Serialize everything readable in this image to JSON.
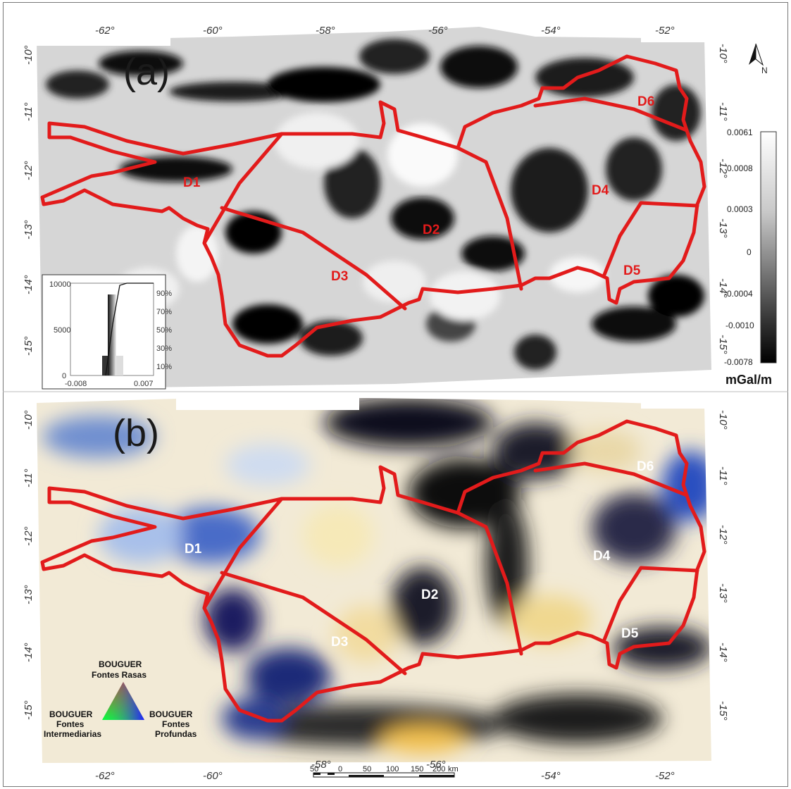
{
  "panels": {
    "a": {
      "label": "(a)"
    },
    "b": {
      "label": "(b)"
    }
  },
  "axes": {
    "top_lon_ticks": [
      "-62°",
      "-60°",
      "-58°",
      "-56°",
      "-54°",
      "-52°"
    ],
    "bottom_lon_ticks": [
      "-62°",
      "-60°",
      "-58°",
      "-56°",
      "-54°",
      "-52°"
    ],
    "panel_a_lat_ticks": [
      "-10°",
      "-11°",
      "-12°",
      "-13°",
      "-14°",
      "-15°"
    ],
    "panel_b_lat_ticks": [
      "-10°",
      "-11°",
      "-12°",
      "-13°",
      "-14°",
      "-15°"
    ]
  },
  "domains": [
    "D1",
    "D2",
    "D3",
    "D4",
    "D5",
    "D6"
  ],
  "north_arrow": {
    "label": "N"
  },
  "colorbar": {
    "values": [
      "0.0061",
      "0.0008",
      "0.0003",
      "0",
      "-0.0004",
      "-0.0010",
      "-0.0078"
    ],
    "unit": "mGal/m"
  },
  "histogram": {
    "y_left": [
      "10000",
      "5000",
      "0"
    ],
    "y_right": [
      "90%",
      "70%",
      "50%",
      "30%",
      "10%"
    ],
    "x": [
      "-0.008",
      "0.007"
    ]
  },
  "ternary_legend": {
    "top": [
      "BOUGUER",
      "Fontes Rasas"
    ],
    "left": [
      "BOUGUER",
      "Fontes",
      "Intermediarias"
    ],
    "right": [
      "BOUGUER",
      "Fontes",
      "Profundas"
    ]
  },
  "scale_bar": {
    "labels": [
      "50",
      "0",
      "50",
      "100",
      "150",
      "200"
    ],
    "unit": "km"
  },
  "colors": {
    "boundary": "#e21b1b",
    "domain_label_a": "#e21b1b",
    "domain_label_b": "#ffffff"
  }
}
